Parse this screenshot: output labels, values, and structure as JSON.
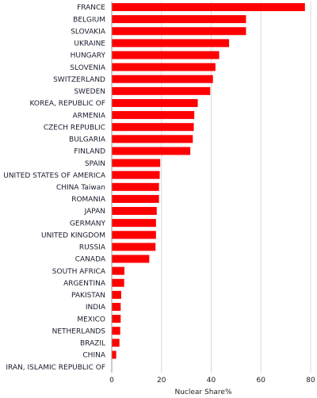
{
  "chart_data": {
    "type": "bar",
    "orientation": "horizontal",
    "xlabel": "Nuclear Share%",
    "ylabel": "",
    "xlim": [
      0,
      80
    ],
    "xticks": [
      0,
      20,
      40,
      60,
      80
    ],
    "grid": true,
    "bar_color": "#ff0000",
    "categories": [
      "FRANCE",
      "BELGIUM",
      "SLOVAKIA",
      "UKRAINE",
      "HUNGARY",
      "SLOVENIA",
      "SWITZERLAND",
      "SWEDEN",
      "KOREA, REPUBLIC OF",
      "ARMENIA",
      "CZECH REPUBLIC",
      "BULGARIA",
      "FINLAND",
      "SPAIN",
      "UNITED STATES OF AMERICA",
      "CHINA Taiwan",
      "ROMANIA",
      "JAPAN",
      "GERMANY",
      "UNITED KINGDOM",
      "RUSSIA",
      "CANADA",
      "SOUTH AFRICA",
      "ARGENTINA",
      "PAKISTAN",
      "INDIA",
      "MEXICO",
      "NETHERLANDS",
      "BRAZIL",
      "CHINA",
      "IRAN, ISLAMIC REPUBLIC OF"
    ],
    "values": [
      77.7,
      54.0,
      54.0,
      47.2,
      43.2,
      41.7,
      40.7,
      39.6,
      34.6,
      33.2,
      33.0,
      32.6,
      31.6,
      19.5,
      19.3,
      19.0,
      19.0,
      18.1,
      17.8,
      17.8,
      17.6,
      15.1,
      5.1,
      5.0,
      3.8,
      3.6,
      3.6,
      3.4,
      3.1,
      1.8,
      0.0
    ]
  }
}
